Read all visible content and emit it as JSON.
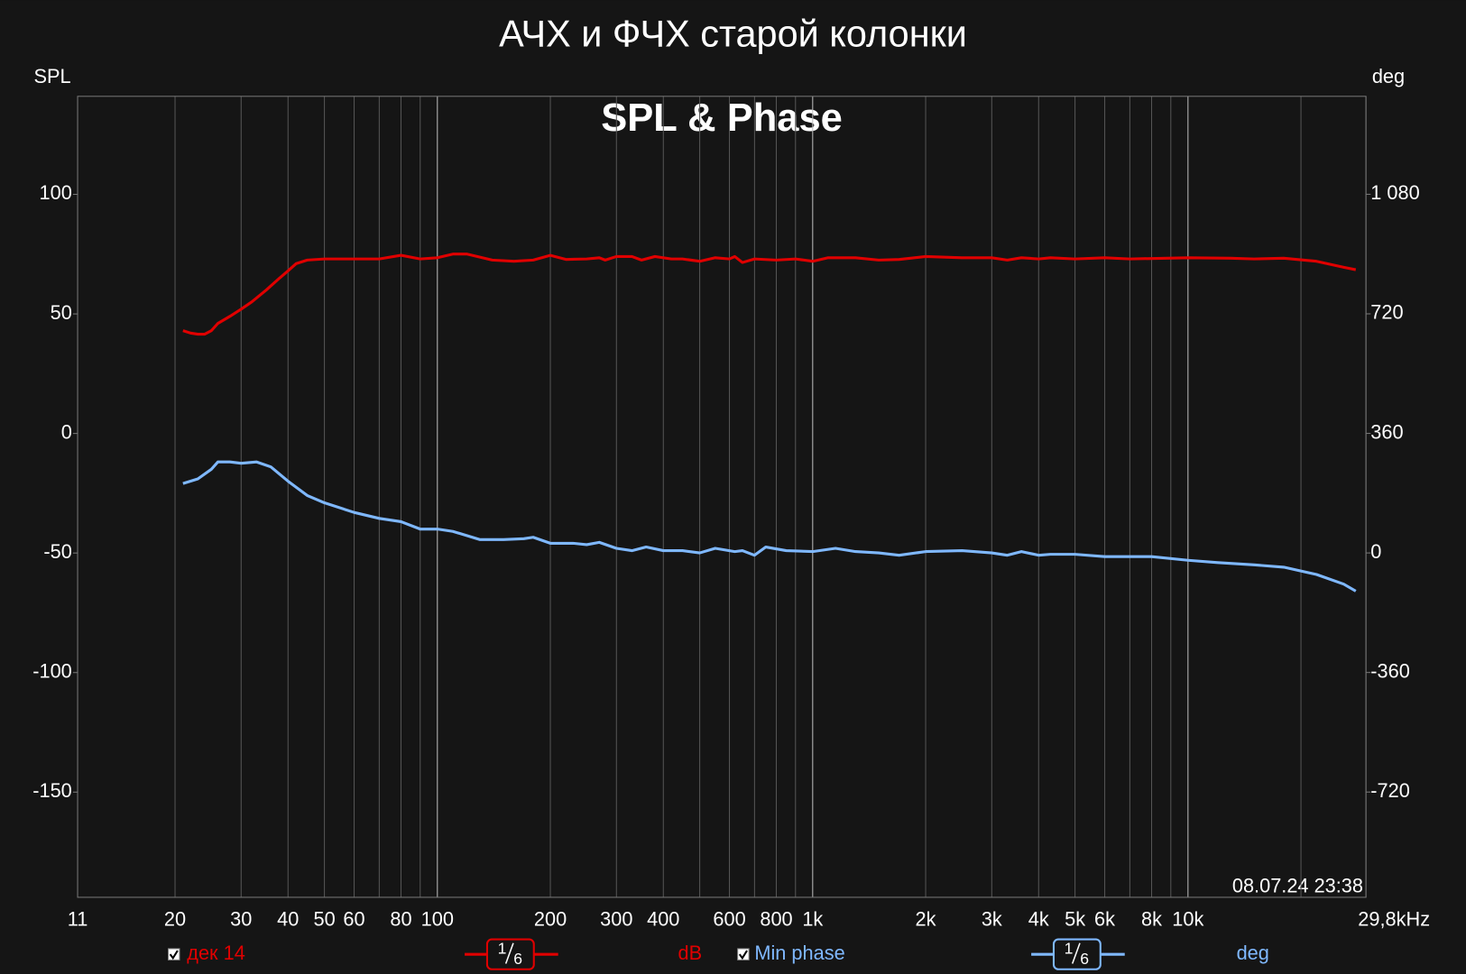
{
  "chart_data": {
    "type": "line",
    "title": "АЧХ и ФЧХ старой колонки",
    "subtitle": "SPL & Phase",
    "y_label": "SPL",
    "y2_label": "deg",
    "timestamp": "08.07.24 23:38",
    "x_scale": "log",
    "grid": "x",
    "xlim": [
      11,
      29800
    ],
    "xticks": [
      11,
      20,
      30,
      40,
      50,
      60,
      80,
      100,
      200,
      300,
      400,
      600,
      800,
      {
        "value": 1000,
        "label": "1k"
      },
      {
        "value": 2000,
        "label": "2k"
      },
      {
        "value": 3000,
        "label": "3k"
      },
      {
        "value": 4000,
        "label": "4k"
      },
      {
        "value": 5000,
        "label": "5k"
      },
      {
        "value": 6000,
        "label": "6k"
      },
      {
        "value": 8000,
        "label": "8k"
      },
      {
        "value": 10000,
        "label": "10k"
      },
      {
        "value": 29800,
        "label": "29,8kHz"
      }
    ],
    "xminorticks": [
      70,
      90,
      500,
      700,
      900,
      7000,
      9000,
      20000
    ],
    "ylim": [
      -194,
      141
    ],
    "yticks": [
      -150,
      -100,
      -50,
      0,
      50,
      100
    ],
    "y2lim": [
      -1037,
      1375
    ],
    "y2ticks": [
      -720,
      -360,
      0,
      360,
      720,
      {
        "value": 1080,
        "label": "1 080"
      }
    ],
    "series": [
      {
        "name": "дек 14",
        "color": "#e00000",
        "unit": "dB",
        "smoothing": [
          "1",
          "6"
        ],
        "x": [
          21,
          22,
          23,
          24,
          25,
          26,
          28,
          30,
          32,
          35,
          38,
          40,
          42,
          45,
          50,
          60,
          70,
          80,
          90,
          100,
          110,
          120,
          140,
          160,
          180,
          200,
          220,
          250,
          270,
          280,
          300,
          330,
          350,
          380,
          420,
          450,
          500,
          550,
          600,
          620,
          650,
          700,
          800,
          900,
          1000,
          1100,
          1300,
          1500,
          1700,
          2000,
          2500,
          3000,
          3300,
          3600,
          4000,
          4300,
          5000,
          6000,
          7000,
          10000,
          13000,
          15000,
          18000,
          22000,
          26000,
          28000
        ],
        "values": [
          43,
          42,
          41.5,
          41.5,
          43,
          46,
          49,
          52,
          55,
          60,
          65,
          68,
          71,
          72.5,
          73,
          73,
          73,
          74.5,
          73,
          73.5,
          75,
          75,
          72.5,
          72,
          72.5,
          74.5,
          72.8,
          73,
          73.5,
          72.5,
          74,
          74,
          72.5,
          74,
          73,
          73,
          72,
          73.5,
          73,
          74,
          71.5,
          73,
          72.5,
          73,
          72,
          73.5,
          73.5,
          72.5,
          72.8,
          74,
          73.5,
          73.5,
          72.5,
          73.5,
          73,
          73.5,
          73,
          73.5,
          73,
          73.5,
          73.3,
          73,
          73.3,
          72,
          69.5,
          68.5
        ]
      },
      {
        "name": "Min phase",
        "color": "#7fb8ff",
        "unit": "deg",
        "axis": "y2",
        "smoothing": [
          "1",
          "6"
        ],
        "x": [
          21,
          23,
          25,
          26,
          28,
          30,
          33,
          36,
          40,
          45,
          50,
          60,
          70,
          80,
          90,
          100,
          110,
          130,
          150,
          170,
          180,
          200,
          230,
          250,
          270,
          300,
          330,
          360,
          400,
          450,
          500,
          550,
          620,
          650,
          700,
          750,
          850,
          1000,
          1150,
          1300,
          1500,
          1700,
          2000,
          2500,
          3000,
          3300,
          3600,
          4000,
          4300,
          5000,
          6000,
          8000,
          10000,
          12000,
          15000,
          18000,
          22000,
          26000,
          28000
        ],
        "values": [
          209,
          223,
          252,
          274,
          274,
          270,
          274,
          259,
          216,
          173,
          151,
          122,
          104,
          94,
          72,
          72,
          65,
          40,
          40,
          43,
          47,
          29,
          29,
          25,
          32,
          14,
          7,
          18,
          7,
          7,
          0,
          14,
          4,
          7,
          -7,
          18,
          7,
          4,
          14,
          4,
          0,
          -7,
          4,
          7,
          0,
          -7,
          4,
          -7,
          -4,
          -4,
          -11,
          -11,
          -22,
          -29,
          -36,
          -43,
          -65,
          -94,
          -115
        ]
      }
    ]
  }
}
